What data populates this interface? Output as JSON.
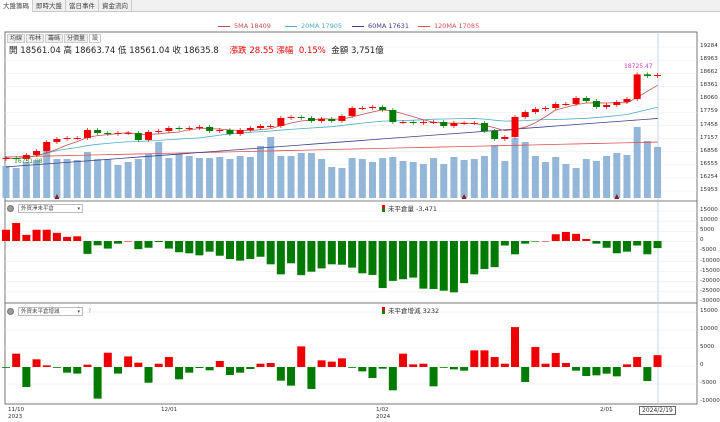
{
  "tabs": [
    "大盤籌碼",
    "即時大盤",
    "當日事件",
    "資金流向"
  ],
  "legend": [
    {
      "label": "5MA 18409",
      "color": "#c0504d"
    },
    {
      "label": "20MA 17905",
      "color": "#4bacc6"
    },
    {
      "label": "60MA 17631",
      "color": "#3f3f8f"
    },
    {
      "label": "120MA 17085",
      "color": "#e05050"
    }
  ],
  "subtabs": [
    "均線",
    "布林",
    "籌碼",
    "分價量",
    "設"
  ],
  "quote": {
    "open_label": "開",
    "open": "18561.04",
    "high_label": "高",
    "high": "18663.74",
    "low_label": "低",
    "low": "18561.04",
    "close_label": "收",
    "close": "18635.8",
    "change_label": "漲跌",
    "change": "28.55",
    "pct_label": "漲幅",
    "pct": "0.15%",
    "amount_label": "金額",
    "amount": "3,751億"
  },
  "colors": {
    "up": "#ee0000",
    "down": "#007a00",
    "volume": "#94b6d8",
    "grid": "#e8e8e8"
  },
  "price_axis": [
    "19284",
    "18963",
    "18662",
    "18361",
    "18060",
    "17759",
    "17458",
    "17157",
    "16856",
    "16555",
    "16254",
    "15953"
  ],
  "high_marker": "18725.47",
  "low_marker": "16731.98",
  "panel2": {
    "selector": "外資淨未平倉",
    "title": "未平倉量 -3,471",
    "axis": [
      "15000",
      "10000",
      "5000",
      "0",
      "-5000",
      "-10000",
      "-15000",
      "-20000",
      "-25000",
      "-30000"
    ]
  },
  "panel3": {
    "selector": "外資未平倉增減",
    "help": "?",
    "title": "未平倉增減 3232",
    "axis": [
      "15000",
      "10000",
      "5000",
      "0",
      "-5000",
      "-10000"
    ]
  },
  "dates": [
    {
      "d": "11/10",
      "y": "2023"
    },
    {
      "d": "12/01",
      "y": ""
    },
    {
      "d": "1/02",
      "y": "2024"
    },
    {
      "d": "2/01",
      "y": ""
    }
  ],
  "current_date": "2024/2/19",
  "chart_data": {
    "type": "candlestick",
    "closes": [
      16717,
      16693,
      16786,
      16878,
      17087,
      17156,
      17179,
      17179,
      17364,
      17295,
      17272,
      17295,
      17295,
      17133,
      17318,
      17341,
      17410,
      17387,
      17410,
      17434,
      17341,
      17364,
      17272,
      17364,
      17410,
      17457,
      17457,
      17642,
      17665,
      17642,
      17572,
      17619,
      17572,
      17688,
      17873,
      17873,
      17896,
      17827,
      17549,
      17549,
      17526,
      17549,
      17549,
      17457,
      17526,
      17526,
      17526,
      17341,
      17156,
      17202,
      17665,
      17780,
      17850,
      17873,
      17966,
      17966,
      18104,
      18035,
      17896,
      17942,
      18012,
      18081,
      18650,
      18613,
      18636
    ],
    "volume": [
      2352,
      2205,
      2646,
      2793,
      3822,
      2867,
      2867,
      2793,
      3381,
      2867,
      2867,
      2426,
      2646,
      2867,
      3234,
      4116,
      2940,
      3234,
      3087,
      2940,
      2940,
      3014,
      2867,
      3087,
      3014,
      3822,
      4484,
      3087,
      3087,
      3308,
      3308,
      2867,
      2279,
      2205,
      2940,
      2867,
      2646,
      2940,
      3014,
      2720,
      2646,
      2499,
      2940,
      2499,
      3014,
      2793,
      2867,
      3087,
      3896,
      2720,
      4410,
      4116,
      3087,
      2646,
      3014,
      2499,
      2205,
      2867,
      2720,
      3087,
      3308,
      3161,
      5219,
      4190,
      3751
    ],
    "ma60": [
      16510,
      17631
    ],
    "ma120": [
      16740,
      17085
    ],
    "price_range": [
      15953,
      19284
    ],
    "settlement_markers": [
      5,
      45,
      60
    ],
    "net_oi": [
      5500,
      8800,
      3000,
      5500,
      5500,
      4000,
      2000,
      2300,
      -6300,
      -2100,
      -3700,
      -1300,
      0,
      -4000,
      -3300,
      -500,
      -3700,
      -5500,
      -6000,
      -7000,
      -5200,
      -7200,
      -8800,
      -9600,
      -8800,
      -7700,
      -11400,
      -16300,
      -10900,
      -16700,
      -15000,
      -13400,
      -11400,
      -11600,
      -13000,
      -15800,
      -16600,
      -23000,
      -19500,
      -18700,
      -17900,
      -23300,
      -23500,
      -24300,
      -25100,
      -20600,
      -16300,
      -13700,
      -12800,
      -2200,
      -6500,
      -1300,
      -300,
      0,
      3300,
      4400,
      3500,
      1000,
      -1300,
      -3300,
      -6000,
      -5200,
      -2200,
      -6500,
      -3471
    ],
    "oi_change": [
      -100,
      3640,
      -5460,
      2100,
      450,
      -100,
      -1550,
      -1800,
      640,
      -8650,
      3900,
      -1800,
      2900,
      1180,
      -4300,
      900,
      2730,
      -3370,
      -1550,
      -270,
      -900,
      1640,
      -2200,
      -1550,
      -550,
      900,
      1100,
      -3730,
      -5100,
      5640,
      -6000,
      1820,
      1460,
      2370,
      -200,
      -1200,
      -3000,
      -450,
      -6370,
      3640,
      730,
      900,
      -5280,
      -180,
      -640,
      -1000,
      4550,
      4550,
      2730,
      900,
      10900,
      -4100,
      5460,
      900,
      3820,
      1100,
      -1000,
      -2460,
      -2280,
      -1820,
      -2550,
      730,
      2730,
      -3820,
      3232
    ]
  }
}
